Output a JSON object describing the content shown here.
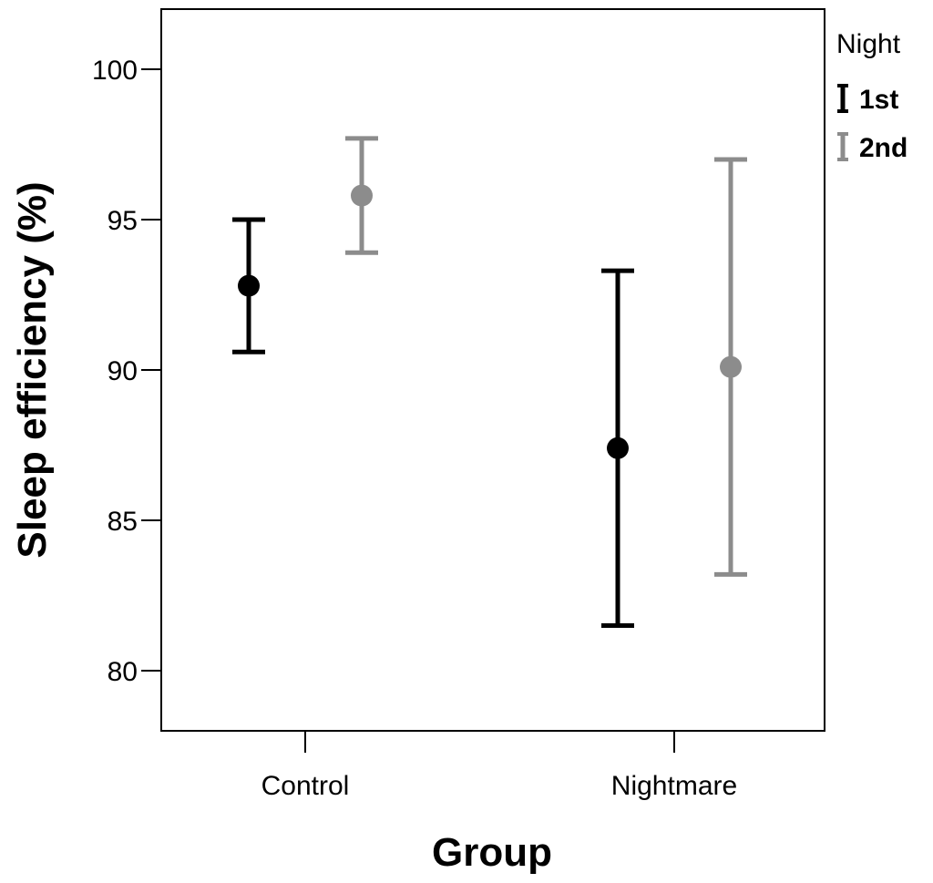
{
  "chart_data": {
    "type": "errorbar",
    "xlabel": "Group",
    "ylabel": "Sleep efficiency (%)",
    "categories": [
      "Control",
      "Nightmare"
    ],
    "ylim": [
      78,
      102
    ],
    "yticks": [
      80,
      85,
      90,
      95,
      100
    ],
    "legend": {
      "title": "Night",
      "placement": "outside-right-top"
    },
    "series": [
      {
        "name": "1st",
        "color": "#000000",
        "points": [
          {
            "category": "Control",
            "mean": 92.8,
            "lower": 90.6,
            "upper": 95.0
          },
          {
            "category": "Nightmare",
            "mean": 87.4,
            "lower": 81.5,
            "upper": 93.3
          }
        ]
      },
      {
        "name": "2nd",
        "color": "#8c8c8c",
        "points": [
          {
            "category": "Control",
            "mean": 95.8,
            "lower": 93.9,
            "upper": 97.7
          },
          {
            "category": "Nightmare",
            "mean": 90.1,
            "lower": 83.2,
            "upper": 97.0
          }
        ]
      }
    ],
    "grid": false
  }
}
